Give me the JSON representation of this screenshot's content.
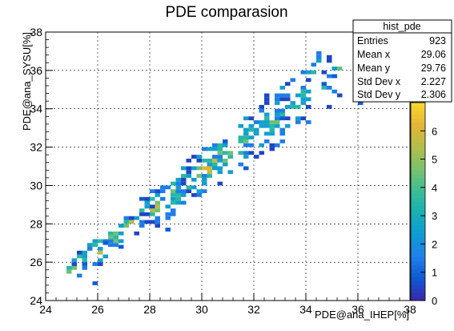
{
  "chart_data": {
    "type": "heatmap",
    "title": "PDE comparasion",
    "xlabel": "PDE@ana_IHEP[%]",
    "ylabel": "PDE@ana_SYSU[%]",
    "xlim": [
      24,
      38
    ],
    "ylim": [
      24,
      38
    ],
    "x_ticks": [
      24,
      26,
      28,
      30,
      32,
      34,
      36,
      38
    ],
    "y_ticks": [
      24,
      26,
      28,
      30,
      32,
      34,
      36,
      38
    ],
    "grid": true,
    "z_range": [
      0,
      7
    ],
    "z_ticks": [
      0,
      1,
      2,
      3,
      4,
      5,
      6
    ],
    "bin_width": 0.2,
    "stats_box": {
      "title": "hist_pde",
      "rows": [
        {
          "label": "Entries",
          "value": "923"
        },
        {
          "label": "Mean x",
          "value": "29.06"
        },
        {
          "label": "Mean y",
          "value": "29.76"
        },
        {
          "label": "Std Dev x",
          "value": "2.227"
        },
        {
          "label": "Std Dev y",
          "value": "2.306"
        }
      ]
    },
    "trend": {
      "x_range": [
        24.8,
        35.4
      ],
      "slope": 1.02,
      "intercept": 0.1
    },
    "palette_colors": [
      "#3d26a8",
      "#0e58d5",
      "#1f80e9",
      "#0f9bd3",
      "#17b0b5",
      "#3dbd96",
      "#79c26b",
      "#b5bd4a",
      "#e5b537",
      "#f7d92a"
    ]
  }
}
